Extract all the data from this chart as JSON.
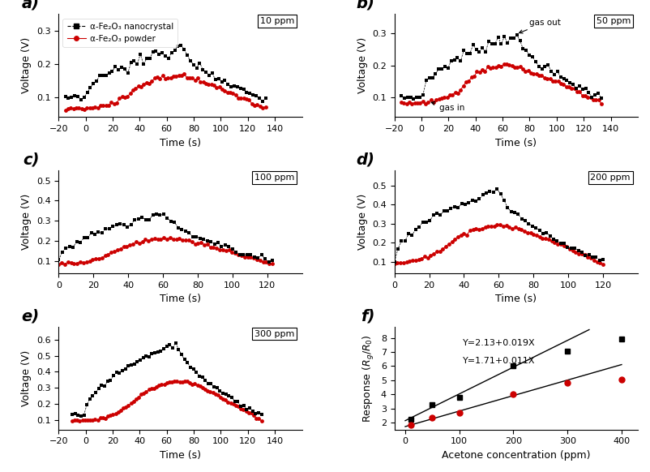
{
  "panels": [
    {
      "label": "a",
      "ppm": "10 ppm",
      "xlim": [
        -20,
        160
      ],
      "xticks": [
        -20,
        0,
        20,
        40,
        60,
        80,
        100,
        120,
        140
      ],
      "ylim": [
        0.04,
        0.35
      ],
      "yticks": [
        0.1,
        0.2,
        0.3
      ],
      "has_legend": true,
      "black": {
        "t_start": -15,
        "t_peak": 73,
        "t_end": 133,
        "v_base": 0.095,
        "v_peak": 0.248,
        "n": 65
      },
      "red": {
        "t_start": -15,
        "t_peak": 70,
        "t_end": 133,
        "v_base": 0.065,
        "v_peak": 0.168,
        "n": 75
      }
    },
    {
      "label": "b",
      "ppm": "50 ppm",
      "xlim": [
        -20,
        160
      ],
      "xticks": [
        -20,
        0,
        20,
        40,
        60,
        80,
        100,
        120,
        140
      ],
      "ylim": [
        0.04,
        0.36
      ],
      "yticks": [
        0.1,
        0.2,
        0.3
      ],
      "has_legend": false,
      "black": {
        "t_start": -15,
        "t_peak": 70,
        "t_end": 133,
        "v_base": 0.1,
        "v_peak": 0.298,
        "n": 65
      },
      "red": {
        "t_start": -15,
        "t_peak": 65,
        "t_end": 133,
        "v_base": 0.085,
        "v_peak": 0.202,
        "n": 75
      },
      "ann_out": [
        70,
        0.298
      ],
      "ann_in": [
        5,
        0.088
      ]
    },
    {
      "label": "c",
      "ppm": "100 ppm",
      "xlim": [
        0,
        140
      ],
      "xticks": [
        0,
        20,
        40,
        60,
        80,
        100,
        120
      ],
      "ylim": [
        0.04,
        0.55
      ],
      "yticks": [
        0.1,
        0.2,
        0.3,
        0.4,
        0.5
      ],
      "has_legend": false,
      "black": {
        "t_start": 0,
        "t_peak": 62,
        "t_end": 123,
        "v_base": 0.1,
        "v_peak": 0.335,
        "n": 60
      },
      "red": {
        "t_start": 0,
        "t_peak": 65,
        "t_end": 123,
        "v_base": 0.085,
        "v_peak": 0.215,
        "n": 70
      }
    },
    {
      "label": "d",
      "ppm": "200 ppm",
      "xlim": [
        0,
        140
      ],
      "xticks": [
        0,
        20,
        40,
        60,
        80,
        100,
        120
      ],
      "ylim": [
        0.04,
        0.58
      ],
      "yticks": [
        0.1,
        0.2,
        0.3,
        0.4,
        0.5
      ],
      "has_legend": false,
      "black": {
        "t_start": 0,
        "t_peak": 60,
        "t_end": 120,
        "v_base": 0.1,
        "v_peak": 0.48,
        "n": 60
      },
      "red": {
        "t_start": 0,
        "t_peak": 62,
        "t_end": 120,
        "v_base": 0.09,
        "v_peak": 0.295,
        "n": 70
      }
    },
    {
      "label": "e",
      "ppm": "300 ppm",
      "xlim": [
        -20,
        160
      ],
      "xticks": [
        -20,
        0,
        20,
        40,
        60,
        80,
        100,
        120,
        140
      ],
      "ylim": [
        0.04,
        0.68
      ],
      "yticks": [
        0.1,
        0.2,
        0.3,
        0.4,
        0.5,
        0.6
      ],
      "has_legend": false,
      "black": {
        "t_start": -10,
        "t_peak": 68,
        "t_end": 130,
        "v_base": 0.13,
        "v_peak": 0.575,
        "n": 65
      },
      "red": {
        "t_start": -10,
        "t_peak": 72,
        "t_end": 130,
        "v_base": 0.095,
        "v_peak": 0.345,
        "n": 75
      }
    }
  ],
  "panel_f": {
    "label": "f",
    "xlim": [
      -20,
      430
    ],
    "xticks": [
      0,
      100,
      200,
      300,
      400
    ],
    "ylim": [
      1.5,
      8.8
    ],
    "yticks": [
      2,
      3,
      4,
      5,
      6,
      7,
      8
    ],
    "xlabel": "Acetone concentration (ppm)",
    "ylabel": "Response ($R_g$/$R_0$)",
    "nano_x": [
      10,
      50,
      100,
      200,
      300,
      400
    ],
    "nano_y": [
      2.22,
      3.25,
      3.78,
      6.03,
      7.07,
      7.92
    ],
    "powder_x": [
      10,
      50,
      100,
      200,
      300,
      400
    ],
    "powder_y": [
      1.82,
      2.35,
      2.67,
      4.02,
      4.82,
      5.07
    ],
    "line1_eq": "Y=2.13+0.019X",
    "line2_eq": "Y=1.71+0.011X",
    "line1_slope": 0.019,
    "line1_intercept": 2.13,
    "line2_slope": 0.011,
    "line2_intercept": 1.71,
    "line1_x": [
      0,
      340
    ],
    "line2_x": [
      0,
      400
    ]
  },
  "nano_color": "#000000",
  "powder_color": "#cc0000",
  "nano_label": "α-Fe₂O₃ nanocrystal",
  "powder_label": "α-Fe₂O₃ powder"
}
